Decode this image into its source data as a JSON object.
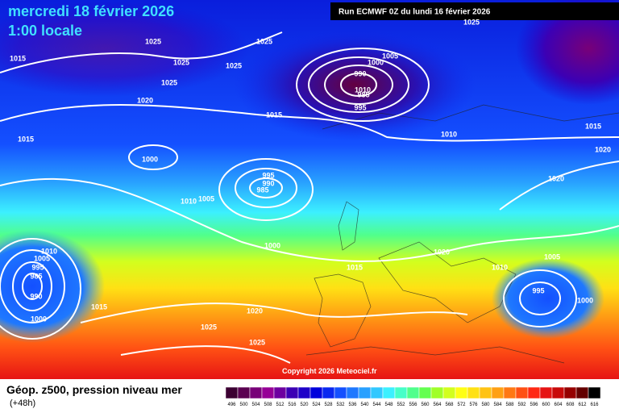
{
  "header": {
    "date": "mercredi 18 février 2026",
    "time": "1:00 locale",
    "run": "Run ECMWF 0Z du lundi 16 février 2026",
    "copyright": "Copyright 2026 Meteociel.fr"
  },
  "footer": {
    "title": "Géop. z500, pression niveau mer",
    "lead": "(+48h)"
  },
  "isobar_labels": [
    1025,
    1025,
    1025,
    1025,
    1025,
    1025,
    1015,
    1015,
    1015,
    1015,
    1015,
    1015,
    1020,
    1020,
    1020,
    1020,
    1020,
    1000,
    1000,
    1000,
    1000,
    1000,
    990,
    990,
    990,
    985,
    985,
    985,
    995,
    995,
    995,
    995,
    1005,
    1005,
    1005,
    1005,
    1010,
    1010,
    1010,
    1010,
    1025,
    1025,
    1010
  ],
  "colorbar": {
    "values": [
      496,
      500,
      504,
      508,
      512,
      516,
      520,
      524,
      528,
      532,
      536,
      540,
      544,
      548,
      552,
      556,
      560,
      564,
      568,
      572,
      576,
      580,
      584,
      588,
      592,
      596,
      600,
      604,
      608,
      612,
      616
    ],
    "colors": [
      "#3c0032",
      "#5a0050",
      "#780078",
      "#960096",
      "#6e00a0",
      "#3c00b4",
      "#1e00c8",
      "#0000dc",
      "#0a28f0",
      "#1450ff",
      "#1e78ff",
      "#28a0ff",
      "#32c8ff",
      "#3cf0ff",
      "#46ffc8",
      "#50ff8c",
      "#64ff50",
      "#a0ff28",
      "#d2ff1e",
      "#ffff14",
      "#ffe114",
      "#ffc314",
      "#ffa014",
      "#ff7814",
      "#ff5014",
      "#ff2814",
      "#e61414",
      "#c80a0a",
      "#960000",
      "#640000",
      "#000000"
    ]
  }
}
